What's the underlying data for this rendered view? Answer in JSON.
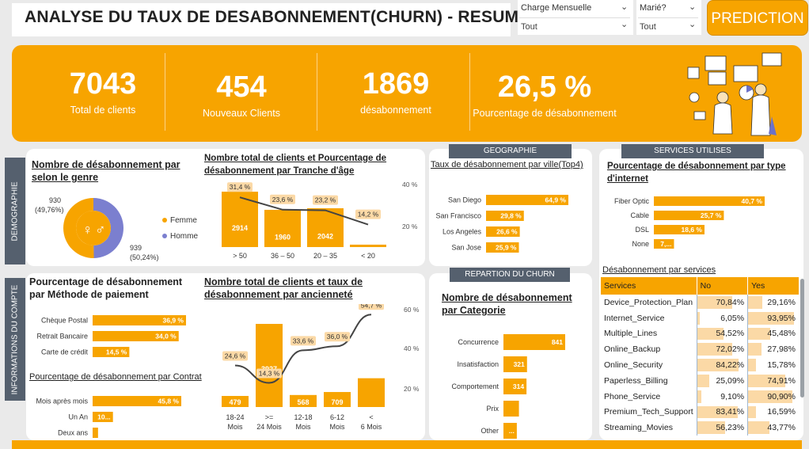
{
  "header": {
    "title": "ANALYSE DU TAUX DE DESABONNEMENT(CHURN) - RESUME",
    "slicers": [
      {
        "label": "Charge Mensuelle",
        "value": "Tout"
      },
      {
        "label": "Marié?",
        "value": "Tout"
      }
    ],
    "prediction_button": "PREDICTION"
  },
  "kpis": [
    {
      "value": "7043",
      "caption": "Total de clients"
    },
    {
      "value": "454",
      "caption": "Nouveaux Clients"
    },
    {
      "value": "1869",
      "caption": "désabonnement"
    },
    {
      "value": "26,5 %",
      "caption": "Pourcentage de désabonnement"
    }
  ],
  "colors": {
    "accent": "#f7a400",
    "secondary": "#7b7fcf",
    "tab": "#55606e"
  },
  "side_tabs": {
    "demo": "DEMOGRAPHIE",
    "account": "INFORMATIONS DU COMPTE"
  },
  "section_tabs": {
    "geo": "GEOGRAPHIE",
    "services": "SERVICES UTILISES",
    "churn": "REPARTION DU CHURN"
  },
  "gender": {
    "title": "Nombre de désabonnement par selon le genre",
    "legend": [
      {
        "name": "Femme",
        "color": "#f7a400"
      },
      {
        "name": "Homme",
        "color": "#7b7fcf"
      }
    ],
    "homme": {
      "count": "930",
      "pct": "(49,76%)"
    },
    "femme": {
      "count": "939",
      "pct": "(50,24%)"
    },
    "chart_data": {
      "type": "pie",
      "categories": [
        "Femme",
        "Homme"
      ],
      "values": [
        939,
        930
      ]
    }
  },
  "age": {
    "title": "Nombre total de clients et Pourcentage de désabonnement par Tranche d'âge",
    "axis": [
      "40 %",
      "20 %"
    ],
    "chart_data": {
      "type": "bar",
      "categories": [
        "> 50",
        "36 – 50",
        "20 – 35",
        "< 20"
      ],
      "series": [
        {
          "values": [
            2914,
            1960,
            2042,
            127
          ],
          "labels": [
            "2914",
            "1960",
            "2042",
            ""
          ]
        },
        {
          "values": [
            31.4,
            23.6,
            23.2,
            14.2
          ],
          "labels": [
            "31,4 %",
            "23,6 %",
            "23,2 %",
            "14,2 %"
          ]
        }
      ],
      "ylim_pct": [
        0,
        40
      ]
    }
  },
  "geo": {
    "title": "Taux de désabonnement par ville(Top4)",
    "chart_data": {
      "type": "bar",
      "categories": [
        "San Diego",
        "San Francisco",
        "Los Angeles",
        "San Jose"
      ],
      "values": [
        64.9,
        29.8,
        26.6,
        25.9
      ],
      "labels": [
        "64,9 %",
        "29,8 %",
        "26,6 %",
        "25,9 %"
      ]
    }
  },
  "internet": {
    "title": "Pourcentage de désabonnement par type d'internet",
    "chart_data": {
      "type": "bar",
      "categories": [
        "Fiber Optic",
        "Cable",
        "DSL",
        "None"
      ],
      "values": [
        40.7,
        25.7,
        18.6,
        7.4
      ],
      "labels": [
        "40,7 %",
        "25,7 %",
        "18,6 %",
        "7,..."
      ]
    }
  },
  "payment": {
    "title": "Pourcentage de désabonnement par Méthode de paiement",
    "chart_data": {
      "type": "bar",
      "categories": [
        "Chèque Postal",
        "Retrait Bancaire",
        "Carte de crédit"
      ],
      "values": [
        36.9,
        34.0,
        14.5
      ],
      "labels": [
        "36,9 %",
        "34,0 %",
        "14,5 %"
      ]
    }
  },
  "contract": {
    "title": "Pourcentage de désabonnement par Contrat",
    "chart_data": {
      "type": "bar",
      "categories": [
        "Mois après mois",
        "Un An",
        "Deux ans"
      ],
      "values": [
        45.8,
        10.5,
        2.8
      ],
      "labels": [
        "45,8 %",
        "10...",
        ""
      ]
    }
  },
  "tenure": {
    "title": "Nombre total de clients et taux de désabonnement par ancienneté",
    "axis": [
      "60 %",
      "40 %",
      "20 %"
    ],
    "chart_data": {
      "type": "bar",
      "categories": [
        "18-24 Mois",
        ">= 24 Mois",
        "12-18 Mois",
        "6-12 Mois",
        "< 6 Mois"
      ],
      "series": [
        {
          "values": [
            479,
            3927,
            568,
            709,
            1360
          ],
          "labels": [
            "479",
            "3927",
            "568",
            "709",
            "1360"
          ]
        },
        {
          "values": [
            24.6,
            14.3,
            33.6,
            36.0,
            54.7
          ],
          "labels": [
            "24,6 %",
            "14,3 %",
            "33,6 %",
            "36,0 %",
            "54,7 %"
          ]
        }
      ],
      "ylim_pct": [
        0,
        60
      ]
    }
  },
  "category": {
    "title": "Nombre de désabonnement par Categorie",
    "chart_data": {
      "type": "bar",
      "categories": [
        "Concurrence",
        "Insatisfaction",
        "Comportement",
        "Prix",
        "Other"
      ],
      "values": [
        841,
        321,
        314,
        211,
        182
      ],
      "labels": [
        "841",
        "321",
        "314",
        "",
        "..."
      ]
    }
  },
  "services": {
    "title": "Désabonnement par services",
    "columns": [
      "Services",
      "No",
      "Yes"
    ],
    "rows": [
      {
        "name": "Device_Protection_Plan",
        "no": "70,84%",
        "yes": "29,16%",
        "no_v": 70.84,
        "yes_v": 29.16
      },
      {
        "name": "Internet_Service",
        "no": "6,05%",
        "yes": "93,95%",
        "no_v": 6.05,
        "yes_v": 93.95
      },
      {
        "name": "Multiple_Lines",
        "no": "54,52%",
        "yes": "45,48%",
        "no_v": 54.52,
        "yes_v": 45.48
      },
      {
        "name": "Online_Backup",
        "no": "72,02%",
        "yes": "27,98%",
        "no_v": 72.02,
        "yes_v": 27.98
      },
      {
        "name": "Online_Security",
        "no": "84,22%",
        "yes": "15,78%",
        "no_v": 84.22,
        "yes_v": 15.78
      },
      {
        "name": "Paperless_Billing",
        "no": "25,09%",
        "yes": "74,91%",
        "no_v": 25.09,
        "yes_v": 74.91
      },
      {
        "name": "Phone_Service",
        "no": "9,10%",
        "yes": "90,90%",
        "no_v": 9.1,
        "yes_v": 90.9
      },
      {
        "name": "Premium_Tech_Support",
        "no": "83,41%",
        "yes": "16,59%",
        "no_v": 83.41,
        "yes_v": 16.59
      },
      {
        "name": "Streaming_Movies",
        "no": "56,23%",
        "yes": "43,77%",
        "no_v": 56.23,
        "yes_v": 43.77
      }
    ]
  }
}
